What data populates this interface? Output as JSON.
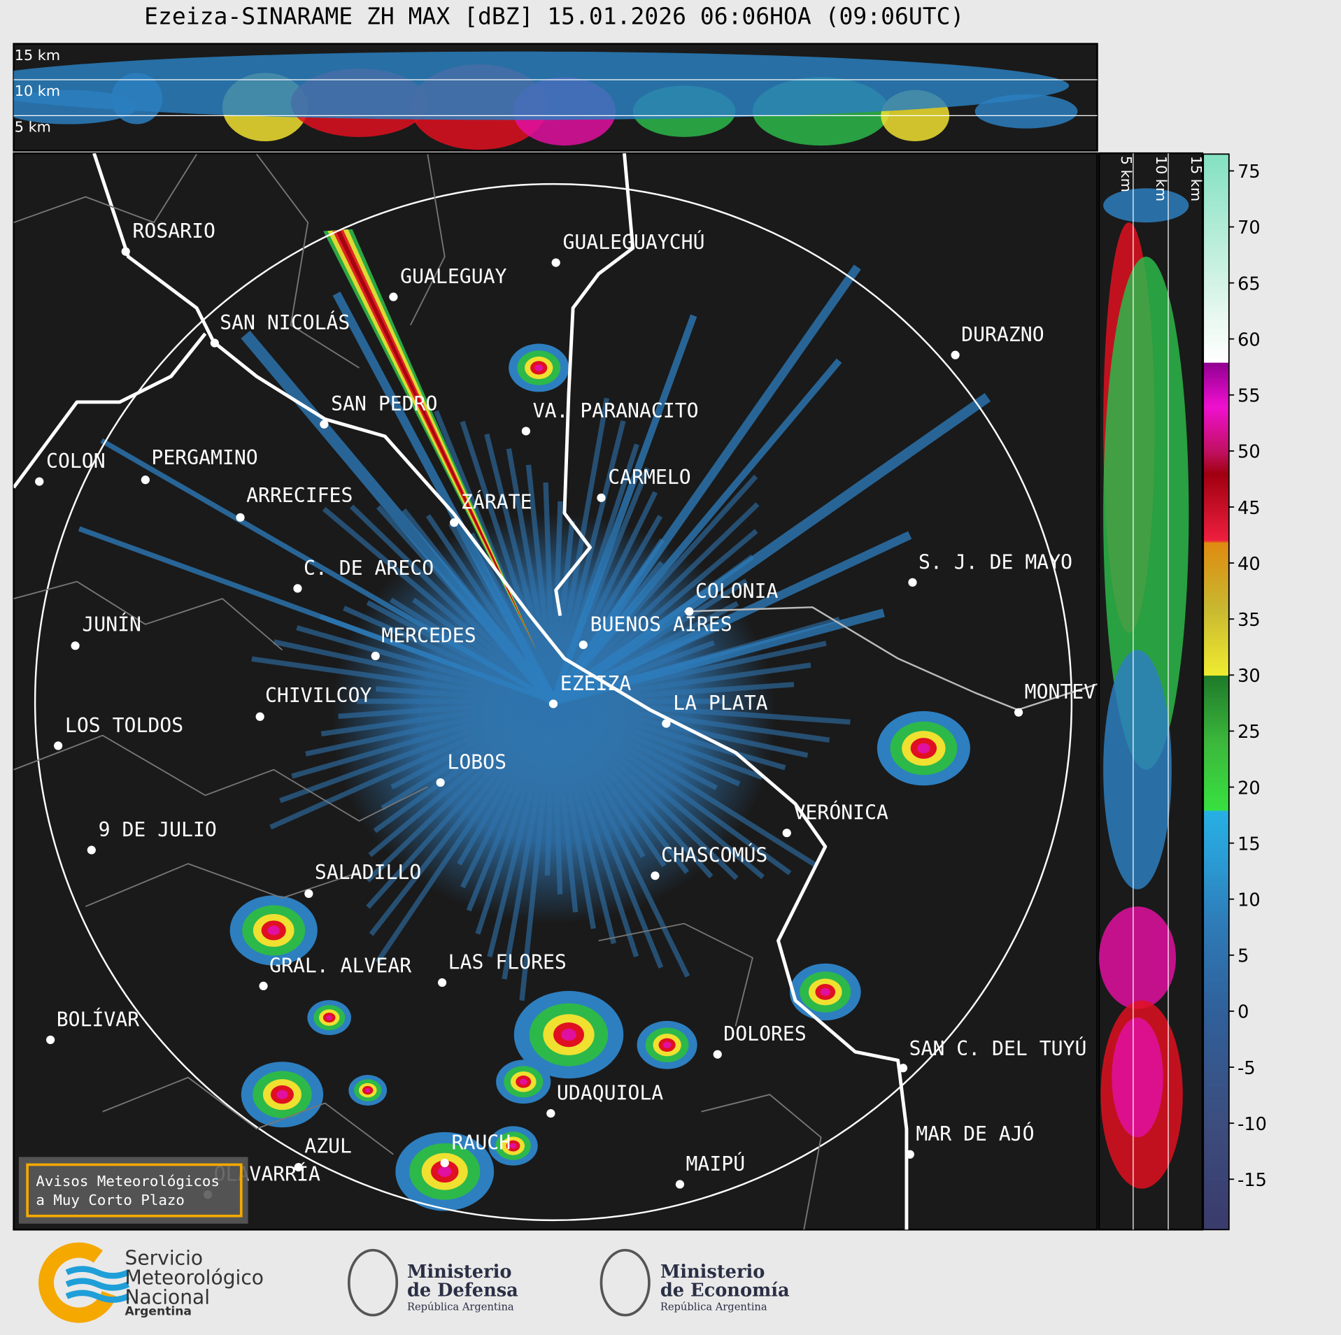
{
  "header": {
    "title": "Ezeiza-SINARAME ZH MAX [dBZ] 15.01.2026 06:06HOA (09:06UTC)"
  },
  "height_labels": [
    "15 km",
    "10 km",
    "5 km"
  ],
  "cities": [
    "ROSARIO",
    "GUALEGUAYCHÚ",
    "GUALEGUAY",
    "SAN NICOLÁS",
    "DURAZNO",
    "SAN PEDRO",
    "VA. PARANACITO",
    "COLON",
    "PERGAMINO",
    "CARMELO",
    "ARRECIFES",
    "ZÁRATE",
    "C. DE ARECO",
    "S. J. DE MAYO",
    "COLONIA",
    "BUENOS AIRES",
    "JUNÍN",
    "MERCEDES",
    "EZEIZA",
    "MONTEVIDEO",
    "CHIVILCOY",
    "LA PLATA",
    "LOS TOLDOS",
    "LOBOS",
    "VERÓNICA",
    "9 DE JULIO",
    "CHASCOMÚS",
    "SALADILLO",
    "GRAL. ALVEAR",
    "LAS FLORES",
    "BOLÍVAR",
    "DOLORES",
    "SAN C. DEL TUYÚ",
    "UDAQUIOLA",
    "MAR DE AJÓ",
    "AZUL",
    "RAUCH",
    "MAIPÚ",
    "OLAVARRÍA"
  ],
  "colorbar": {
    "lim": [
      -19.5,
      76.5
    ],
    "ticks": [
      75,
      70,
      65,
      60,
      55,
      50,
      45,
      40,
      35,
      30,
      25,
      20,
      15,
      10,
      5,
      0,
      -5,
      -10,
      -15
    ]
  },
  "warning": {
    "lines": [
      "Avisos Meteorológicos",
      "a Muy Corto Plazo"
    ]
  },
  "logos": [
    {
      "lines": [
        "Servicio",
        "Meteorológico",
        "Nacional"
      ],
      "sub": "Argentina"
    },
    {
      "lines": [
        "Ministerio",
        "de Defensa"
      ],
      "sub": "República Argentina"
    },
    {
      "lines": [
        "Ministerio",
        "de Economía"
      ],
      "sub": "República Argentina"
    }
  ]
}
